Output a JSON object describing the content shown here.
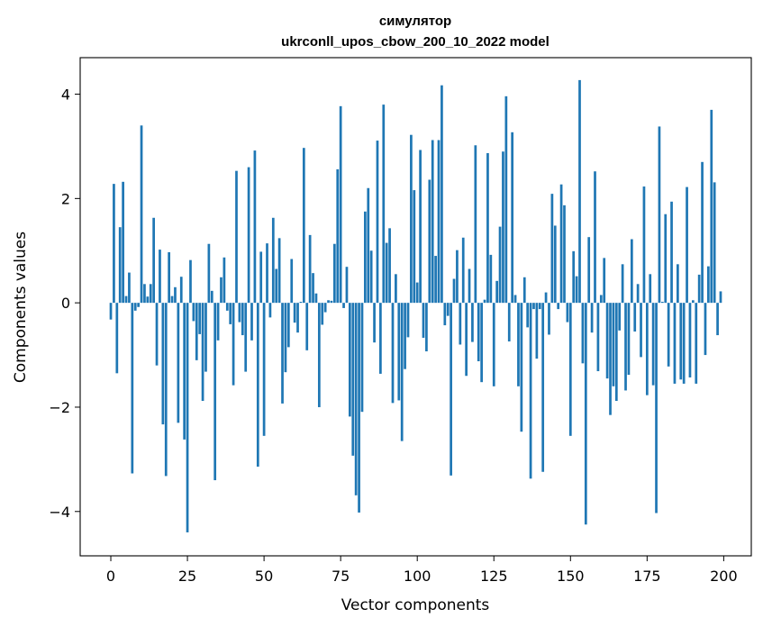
{
  "chart_data": {
    "type": "bar",
    "title_line1": "симулятор",
    "title_line2": "ukrconll_upos_cbow_200_10_2022 model",
    "xlabel": "Vector components",
    "ylabel": "Components values",
    "xlim": [
      -10,
      209
    ],
    "ylim": [
      -4.85,
      4.7
    ],
    "xticks": [
      0,
      25,
      50,
      75,
      100,
      125,
      150,
      175,
      200
    ],
    "yticks": [
      -4,
      -2,
      0,
      2,
      4
    ],
    "ytick_labels": [
      "−4",
      "−2",
      "0",
      "2",
      "4"
    ],
    "grid": false,
    "bar_color": "#1f77b4",
    "series": [
      {
        "values": [
          -0.32,
          2.28,
          -1.35,
          1.45,
          2.32,
          0.13,
          0.58,
          -3.27,
          -0.15,
          -0.08,
          3.4,
          0.36,
          0.12,
          0.36,
          1.63,
          -1.2,
          1.02,
          -2.33,
          -3.32,
          0.97,
          0.13,
          0.3,
          -2.3,
          0.5,
          -2.62,
          -4.4,
          0.82,
          -0.35,
          -1.1,
          -0.6,
          -1.88,
          -1.32,
          1.13,
          0.23,
          -3.4,
          -0.72,
          0.49,
          0.87,
          -0.15,
          -0.41,
          -1.58,
          2.53,
          -0.37,
          -0.62,
          -1.32,
          2.6,
          -0.72,
          2.92,
          -3.14,
          0.98,
          -2.55,
          1.14,
          -0.28,
          1.63,
          0.65,
          1.24,
          -1.93,
          -1.33,
          -0.85,
          0.84,
          -0.38,
          -0.57,
          0.02,
          2.97,
          -0.91,
          1.3,
          0.57,
          0.18,
          -2.0,
          -0.42,
          -0.18,
          0.05,
          0.04,
          1.13,
          2.56,
          3.77,
          -0.1,
          0.69,
          -2.18,
          -2.93,
          -3.69,
          -4.02,
          -2.09,
          1.75,
          2.2,
          1.0,
          -0.76,
          3.11,
          -1.36,
          3.8,
          1.15,
          1.43,
          -1.92,
          0.55,
          -1.87,
          -2.65,
          -1.27,
          -0.66,
          3.22,
          2.16,
          0.39,
          2.93,
          -0.67,
          -0.93,
          2.36,
          3.12,
          0.9,
          3.12,
          4.17,
          -0.43,
          -0.25,
          -3.31,
          0.46,
          1.01,
          -0.8,
          1.25,
          -1.4,
          0.65,
          -0.75,
          3.02,
          -1.12,
          -1.52,
          0.06,
          2.87,
          0.92,
          -1.6,
          0.42,
          1.46,
          2.9,
          3.96,
          -0.74,
          3.27,
          0.15,
          -1.6,
          -2.47,
          0.49,
          -0.47,
          -3.37,
          -0.12,
          -1.07,
          -0.12,
          -3.24,
          0.2,
          -0.61,
          2.09,
          1.48,
          -0.12,
          2.27,
          1.87,
          -0.37,
          -2.55,
          0.99,
          0.51,
          4.27,
          -1.16,
          -4.25,
          1.26,
          -0.57,
          2.52,
          -1.31,
          0.15,
          0.86,
          -1.45,
          -2.15,
          -1.6,
          -1.88,
          -0.53,
          0.74,
          -1.68,
          -1.38,
          1.22,
          -0.55,
          0.36,
          -1.04,
          2.23,
          -1.77,
          0.55,
          -1.58,
          -4.03,
          3.38,
          0.02,
          1.7,
          -1.22,
          1.94,
          -1.55,
          0.74,
          -1.47,
          -1.55,
          2.22,
          -1.43,
          0.05,
          -1.55,
          0.54,
          2.7,
          -1.0,
          0.7,
          3.7,
          2.31,
          -0.62,
          0.22
        ]
      }
    ]
  }
}
